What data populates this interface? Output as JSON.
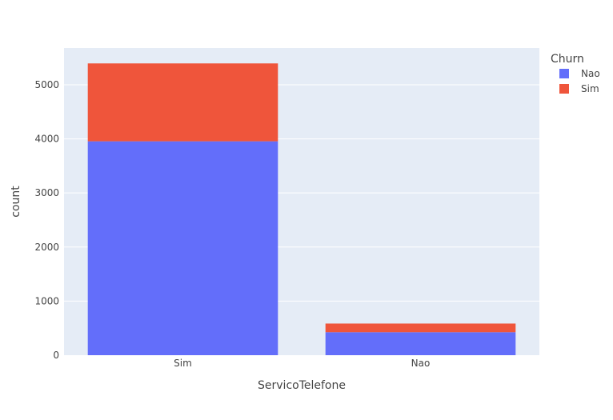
{
  "chart_data": {
    "type": "bar",
    "barmode": "stack",
    "categories": [
      "Sim",
      "Nao"
    ],
    "series": [
      {
        "name": "Nao",
        "values": [
          3955,
          425
        ],
        "color": "#636efa"
      },
      {
        "name": "Sim",
        "values": [
          1440,
          160
        ],
        "color": "#ef553b"
      }
    ],
    "xlabel": "ServicoTelefone",
    "ylabel": "count",
    "ylim": [
      0,
      5680
    ],
    "yticks": [
      0,
      1000,
      2000,
      3000,
      4000,
      5000
    ],
    "ytick_labels": [
      "0",
      "1000",
      "2000",
      "3000",
      "4000",
      "5000"
    ],
    "legend_title": "Churn",
    "legend_position": "top-right",
    "grid": true,
    "plot_background": "#e5ecf6"
  }
}
